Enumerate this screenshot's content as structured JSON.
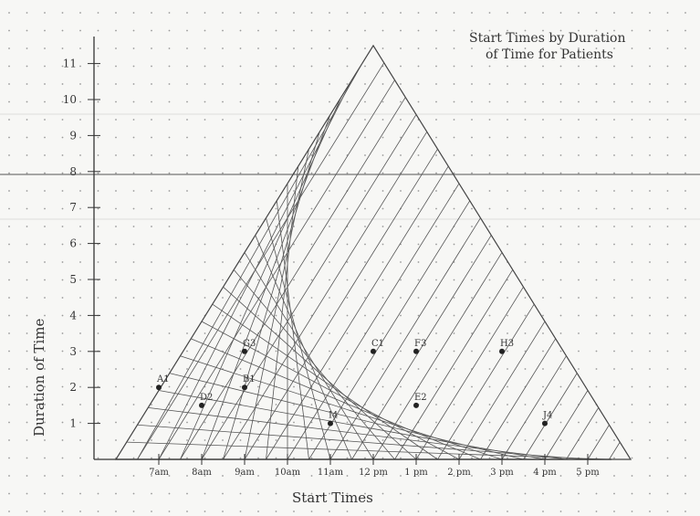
{
  "chart_data": {
    "type": "scatter",
    "title_lines": [
      "Start Times by Duration",
      "of Time for Patients"
    ],
    "xlabel": "Start Times",
    "ylabel": "Duration of Time",
    "x_ticks": [
      "7am",
      "8am",
      "9am",
      "10am",
      "11am",
      "12 pm",
      "1 pm",
      "2 pm",
      "3 pm",
      "4 pm",
      "5 pm"
    ],
    "y_ticks": [
      "1",
      "2",
      "3",
      "4",
      "5",
      "6",
      "7",
      "8",
      "9",
      "10",
      "11"
    ],
    "xlim": [
      "6am",
      "6pm"
    ],
    "ylim": [
      0,
      11.5
    ],
    "points": [
      {
        "label": "A1",
        "start": "7am",
        "duration": 2
      },
      {
        "label": "B1",
        "start": "9am",
        "duration": 2
      },
      {
        "label": "D2",
        "start": "8am",
        "duration": 1.5
      },
      {
        "label": "G3",
        "start": "9am",
        "duration": 3
      },
      {
        "label": "C1",
        "start": "12 pm",
        "duration": 3
      },
      {
        "label": "F3",
        "start": "1 pm",
        "duration": 3
      },
      {
        "label": "H3",
        "start": "3 pm",
        "duration": 3
      },
      {
        "label": "I4",
        "start": "11am",
        "duration": 1
      },
      {
        "label": "E2",
        "start": "1 pm",
        "duration": 1.5
      },
      {
        "label": "J4",
        "start": "4 pm",
        "duration": 1
      }
    ]
  }
}
